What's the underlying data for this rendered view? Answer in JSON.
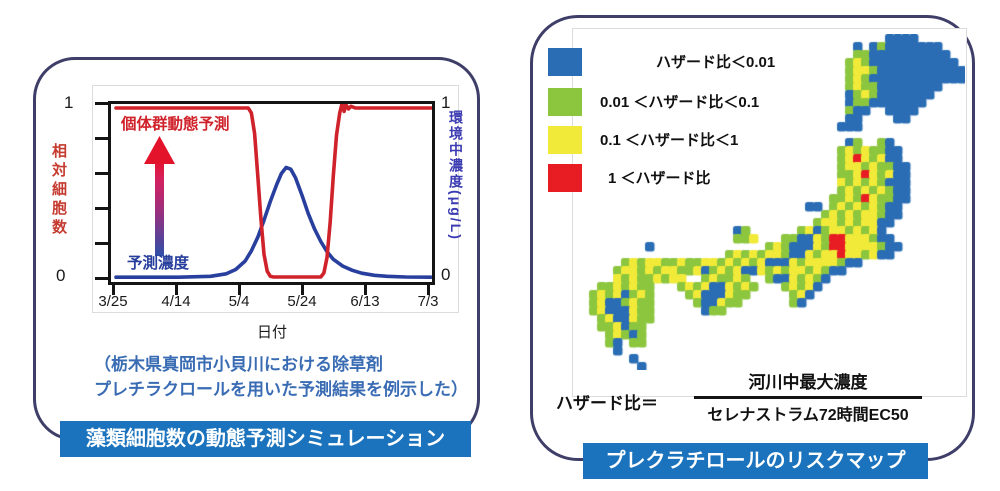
{
  "colors": {
    "panel_border": "#3e3e68",
    "badge_bg": "#1a73bc",
    "caption_blue": "#3a6cb4",
    "line_red": "#d0222a",
    "line_blue": "#283f9d",
    "left_axis_red": "#c53b30",
    "right_axis_blue": "#3b3bb2",
    "map_blue": "#2a6db4",
    "map_green": "#8cc63e",
    "map_yellow": "#f2ea38",
    "map_red": "#e81d23"
  },
  "chart_data": {
    "type": "line",
    "x_axis": {
      "label": "日付",
      "tick_labels": [
        "3/25",
        "4/14",
        "5/4",
        "5/24",
        "6/13",
        "7/3"
      ],
      "tick_days": [
        0,
        20,
        40,
        60,
        80,
        100
      ]
    },
    "y_left": {
      "label": "相対細胞数",
      "min": 0,
      "max": 1,
      "top_tick": "1",
      "bottom_tick": "0"
    },
    "y_right": {
      "label": "環境中濃度(μg/L)",
      "min": 0,
      "max": 1,
      "top_tick": "1",
      "bottom_tick": "0"
    },
    "series": [
      {
        "name": "予測濃度",
        "axis": "right",
        "color": "#283f9d",
        "points": [
          [
            0,
            0.005
          ],
          [
            20,
            0.005
          ],
          [
            30,
            0.01
          ],
          [
            35,
            0.025
          ],
          [
            38,
            0.05
          ],
          [
            41,
            0.1
          ],
          [
            43,
            0.16
          ],
          [
            45,
            0.24
          ],
          [
            47,
            0.34
          ],
          [
            49,
            0.45
          ],
          [
            51,
            0.55
          ],
          [
            52.5,
            0.615
          ],
          [
            54,
            0.65
          ],
          [
            55.5,
            0.64
          ],
          [
            57,
            0.59
          ],
          [
            59,
            0.49
          ],
          [
            61,
            0.38
          ],
          [
            63,
            0.29
          ],
          [
            65,
            0.215
          ],
          [
            67,
            0.155
          ],
          [
            69,
            0.11
          ],
          [
            72,
            0.07
          ],
          [
            75,
            0.045
          ],
          [
            78,
            0.028
          ],
          [
            82,
            0.016
          ],
          [
            86,
            0.01
          ],
          [
            92,
            0.006
          ],
          [
            100,
            0.005
          ]
        ]
      },
      {
        "name": "個体群動態予測",
        "axis": "left",
        "color": "#d0222a",
        "points": [
          [
            0,
            1
          ],
          [
            42,
            1
          ],
          [
            43,
            0.97
          ],
          [
            44,
            0.85
          ],
          [
            45,
            0.6
          ],
          [
            46,
            0.35
          ],
          [
            47,
            0.14
          ],
          [
            48,
            0.04
          ],
          [
            49,
            0.01
          ],
          [
            50,
            0.006
          ],
          [
            65,
            0.006
          ],
          [
            66,
            0.03
          ],
          [
            67,
            0.12
          ],
          [
            68,
            0.33
          ],
          [
            69,
            0.6
          ],
          [
            70,
            0.84
          ],
          [
            71,
            0.97
          ],
          [
            71.8,
            1.03
          ],
          [
            72.4,
            0.98
          ],
          [
            73,
            1.02
          ],
          [
            73.8,
            0.995
          ],
          [
            74.6,
            1.01
          ],
          [
            76,
            1
          ],
          [
            100,
            1
          ]
        ]
      }
    ],
    "annotation_arrow": {
      "from_label": "予測濃度",
      "to_label": "個体群動態予測"
    }
  },
  "left_panel": {
    "series_label_red": "個体群動態予測",
    "series_label_blue": "予測濃度",
    "caption_line1": "（栃木県真岡市小貝川における除草剤",
    "caption_line2": "プレチラクロールを用いた予測結果を例示した）",
    "badge": "藻類細胞数の動態予測シミュレーション"
  },
  "right_panel": {
    "legend": {
      "items": [
        {
          "color": "#2a6db4",
          "label": "ハザード比＜0.01",
          "indent": 56
        },
        {
          "color": "#8cc63e",
          "label": "0.01 ＜ハザード比＜0.1",
          "indent": 0
        },
        {
          "color": "#f2ea38",
          "label": "0.1  ＜ハザード比＜1",
          "indent": 0
        },
        {
          "color": "#e81d23",
          "label": "1  ＜ハザード比",
          "indent": 8
        }
      ]
    },
    "map": {
      "cell": 8,
      "palette": {
        "B": "#2a6db4",
        "G": "#8cc63e",
        "Y": "#f2ea38",
        "R": "#e81d23"
      },
      "rows": [
        "......................................BBBB......",
        "..................................B.BGBBBBBBB...",
        "..................................GGBBBBBBBBBB..",
        ".................................GYGBBBBBBBBBBB.",
        ".................................GYYGBBBBBBBBBBB",
        ".................................GYGBBBBBBBBBBBB",
        ".................................GYGGBBBBBBBB...",
        ".................................BGYGBBBBBBB....",
        ".................................BGGBBBBBBB.....",
        ".................................GBB..BBBB......",
        ".................................BB....BB.......",
        "................................BBB.............",
        "................................................",
        ".................................BG..GB.........",
        "................................GYGYGGBB........",
        "................................GYRYGYBB........",
        "................................GYYGYGGBB.......",
        "................................GGYRYGYBB.......",
        "................................YGYGYGBBB.......",
        "................................GYGYGYGBB.......",
        "...............................GGYGRYGGBB.......",
        "............................BB.GYGYGYGBB........",
        "..............................GYGYGYYGBB........",
        ".............................GYYGYGYYBB.........",
        "...................BG......GYBGYYGYGYB..........",
        "...................GGY...GGBBYGRRYYYGBB.........",
        "........B..............GYGBBBYGRRYYYYGBB........",
        "..................GYGYGYYGBBYGYYRYYGYBB.........",
        ".....GYGYYGGYGGYYGYGYGYBBBYGYYYYGBB.............",
        "....GYYGYGYYGGYBGYGYBBYGYGYYGYGBB...............",
        "....YGYGGYGYY..GYGGYG..GBBYGYGB.................",
        "..GGYGYGG...GYGYBBYGYG...GYGYB..................",
        ".GYGYBGYG....GYBBBYGG.....GYB...................",
        ".GYBBGYGG.....GBBYGG......GB....................",
        ".GYBBBYGG......BGG..............................",
        "..GYBBYGG.......................................",
        "..GGYBGG........................................",
        "...GYGBG........................................",
        "...GB.GG........................................",
        "....B...........................................",
        "......B.........................................",
        ".......B........................................"
      ]
    },
    "formula": {
      "prefix": "ハザード比＝",
      "numerator": "河川中最大濃度",
      "denominator": "セレナストラム72時間EC50"
    },
    "badge": "プレクラチロールのリスクマップ"
  }
}
